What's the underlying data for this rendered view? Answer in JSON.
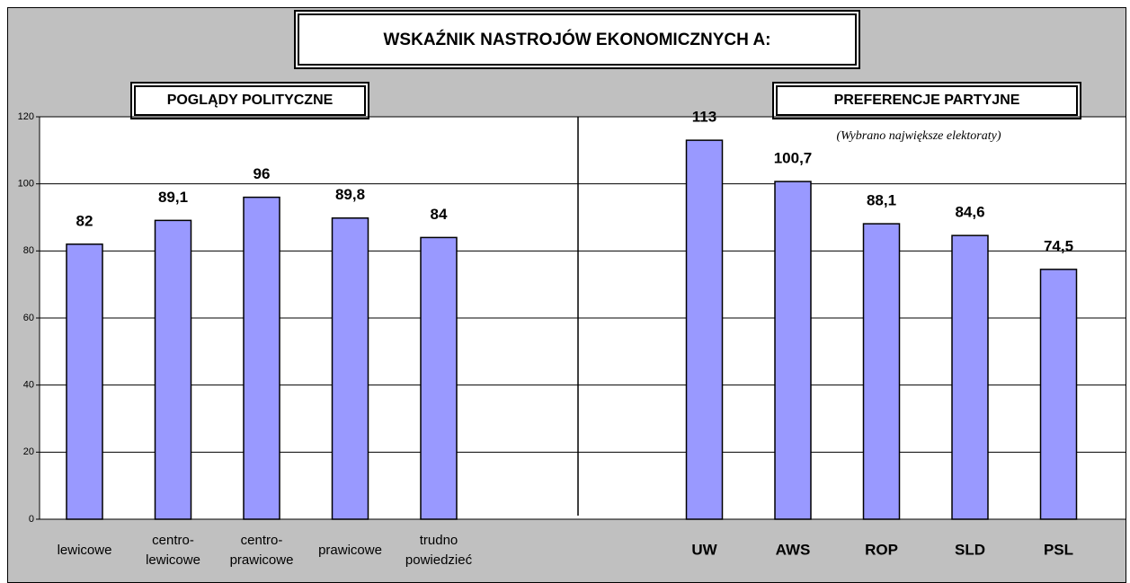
{
  "chart_data": {
    "type": "bar",
    "title": "WSKAŹNIK NASTROJÓW EKONOMICZNYCH A:",
    "group_titles": [
      "POGLĄDY POLITYCZNE",
      "PREFERENCJE PARTYJNE"
    ],
    "subtitle": "(Wybrano największe elektoraty)",
    "categories": [
      "lewicowe",
      "centro-\nlewicowe",
      "centro-\nprawicowe",
      "prawicowe",
      "trudno\npowiedzieć",
      null,
      null,
      "UW",
      "AWS",
      "ROP",
      "SLD",
      "PSL"
    ],
    "values": [
      82,
      89.1,
      96,
      89.8,
      84,
      null,
      null,
      113,
      100.7,
      88.1,
      84.6,
      74.5
    ],
    "value_labels": [
      "82",
      "89,1",
      "96",
      "89,8",
      "84",
      null,
      null,
      "113",
      "100,7",
      "88,1",
      "84,6",
      "74,5"
    ],
    "color": "#9999ff",
    "ylim": [
      0,
      120
    ],
    "yticks": [
      0,
      20,
      40,
      60,
      80,
      100,
      120
    ],
    "grid": true
  }
}
